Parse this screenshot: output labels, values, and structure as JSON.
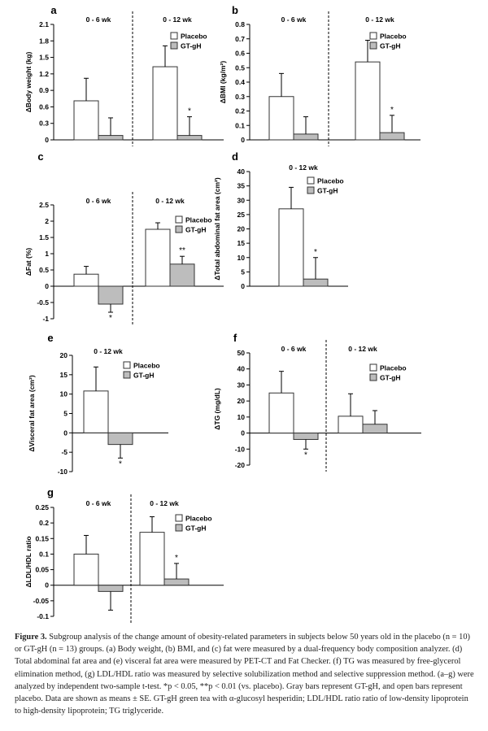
{
  "colors": {
    "placebo": "#ffffff",
    "gtgh": "#bdbdbd",
    "axis": "#000000",
    "bar_stroke": "#333333"
  },
  "chart_data": [
    {
      "id": "a",
      "panel_label": "a",
      "type": "bar",
      "ylabel": "ΔBody weight (kg)",
      "ylim": [
        0,
        2.1
      ],
      "ticks": [
        "0",
        "0.3",
        "0.6",
        "0.9",
        "1.2",
        "1.5",
        "1.8",
        "2.1"
      ],
      "groups": [
        "0 - 6 wk",
        "0 - 12 wk"
      ],
      "series": [
        {
          "name": "Placebo",
          "values": [
            0.71,
            1.33
          ],
          "errors": [
            0.41,
            0.38
          ]
        },
        {
          "name": "GT-gH",
          "values": [
            0.08,
            0.08
          ],
          "errors": [
            0.32,
            0.34
          ]
        }
      ],
      "significance": [
        "",
        "*"
      ],
      "legend_position": "top-right"
    },
    {
      "id": "b",
      "panel_label": "b",
      "type": "bar",
      "ylabel": "ΔBMI (kg/m²)",
      "ylim": [
        0,
        0.8
      ],
      "ticks": [
        "0",
        "0.1",
        "0.2",
        "0.3",
        "0.4",
        "0.5",
        "0.6",
        "0.7",
        "0.8"
      ],
      "groups": [
        "0 - 6 wk",
        "0 - 12 wk"
      ],
      "series": [
        {
          "name": "Placebo",
          "values": [
            0.3,
            0.54
          ],
          "errors": [
            0.16,
            0.15
          ]
        },
        {
          "name": "GT-gH",
          "values": [
            0.04,
            0.05
          ],
          "errors": [
            0.12,
            0.12
          ]
        }
      ],
      "significance": [
        "",
        "*"
      ],
      "legend_position": "top-right"
    },
    {
      "id": "c",
      "panel_label": "c",
      "type": "bar",
      "ylabel": "ΔFat (%)",
      "ylim": [
        -1,
        2.5
      ],
      "ticks": [
        "-1",
        "-0.5",
        "0",
        "0.5",
        "1",
        "1.5",
        "2",
        "2.5"
      ],
      "groups": [
        "0 - 6 wk",
        "0 - 12 wk"
      ],
      "series": [
        {
          "name": "Placebo",
          "values": [
            0.37,
            1.75
          ],
          "errors": [
            0.24,
            0.2
          ]
        },
        {
          "name": "GT-gH",
          "values": [
            -0.55,
            0.68
          ],
          "errors": [
            0.25,
            0.24
          ]
        }
      ],
      "significance": [
        "*",
        "**"
      ],
      "legend_position": "top-right"
    },
    {
      "id": "d",
      "panel_label": "d",
      "type": "bar",
      "ylabel": "ΔTotal abdominal fat area (cm²)",
      "ylim": [
        0,
        40
      ],
      "ticks": [
        "0",
        "5",
        "10",
        "15",
        "20",
        "25",
        "30",
        "35",
        "40"
      ],
      "groups": [
        "0 - 12 wk"
      ],
      "series": [
        {
          "name": "Placebo",
          "values": [
            27
          ],
          "errors": [
            7.5
          ]
        },
        {
          "name": "GT-gH",
          "values": [
            2.5
          ],
          "errors": [
            7.5
          ]
        }
      ],
      "significance": [
        "*"
      ],
      "legend_position": "top-right"
    },
    {
      "id": "e",
      "panel_label": "e",
      "type": "bar",
      "ylabel": "ΔVisceral fat area (cm²)",
      "ylim": [
        -10,
        20
      ],
      "ticks": [
        "-10",
        "-5",
        "0",
        "5",
        "10",
        "15",
        "20"
      ],
      "groups": [
        "0 - 12 wk"
      ],
      "series": [
        {
          "name": "Placebo",
          "values": [
            10.8
          ],
          "errors": [
            6.2
          ]
        },
        {
          "name": "GT-gH",
          "values": [
            -3
          ],
          "errors": [
            3.5
          ]
        }
      ],
      "significance": [
        "*"
      ],
      "legend_position": "top-right"
    },
    {
      "id": "f",
      "panel_label": "f",
      "type": "bar",
      "ylabel": "ΔTG (mg/dL)",
      "ylim": [
        -20,
        50
      ],
      "ticks": [
        "-20",
        "-10",
        "0",
        "10",
        "20",
        "30",
        "40",
        "50"
      ],
      "groups": [
        "0 - 6 wk",
        "0 - 12 wk"
      ],
      "series": [
        {
          "name": "Placebo",
          "values": [
            25,
            10.5
          ],
          "errors": [
            13.5,
            14
          ]
        },
        {
          "name": "GT-gH",
          "values": [
            -4,
            5.5
          ],
          "errors": [
            6,
            8.5
          ]
        }
      ],
      "significance": [
        "*",
        ""
      ],
      "legend_position": "top-right"
    },
    {
      "id": "g",
      "panel_label": "g",
      "type": "bar",
      "ylabel": "ΔLDL/HDL ratio",
      "ylim": [
        -0.1,
        0.25
      ],
      "ticks": [
        "-0.1",
        "-0.05",
        "0",
        "0.05",
        "0.1",
        "0.15",
        "0.2",
        "0.25"
      ],
      "groups": [
        "0 - 6 wk",
        "0 - 12 wk"
      ],
      "series": [
        {
          "name": "Placebo",
          "values": [
            0.1,
            0.17
          ],
          "errors": [
            0.06,
            0.05
          ]
        },
        {
          "name": "GT-gH",
          "values": [
            -0.02,
            0.02
          ],
          "errors": [
            0.06,
            0.05
          ]
        }
      ],
      "significance": [
        "",
        "*"
      ],
      "legend_position": "top-right"
    }
  ],
  "caption": {
    "lead": "Figure 3.",
    "text": "Subgroup analysis of the change amount of obesity-related parameters in subjects below 50 years old in the placebo (n = 10) or GT-gH (n = 13) groups. (a) Body weight, (b) BMI, and (c) fat were measured by a dual-frequency body composition analyzer. (d) Total abdominal fat area and (e) visceral fat area were measured by PET-CT and Fat Checker. (f) TG was measured by free-glycerol elimination method, (g) LDL/HDL ratio was measured by selective solubilization method and selective suppression method. (a–g) were analyzed by independent two-sample t-test. *p < 0.05, **p < 0.01 (vs. placebo). Gray bars represent GT-gH, and open bars represent placebo. Data are shown as means ± SE. GT-gH green tea with α-glucosyl hesperidin; LDL/HDL ratio ratio of low-density lipoprotein to high-density lipoprotein; TG triglyceride."
  }
}
